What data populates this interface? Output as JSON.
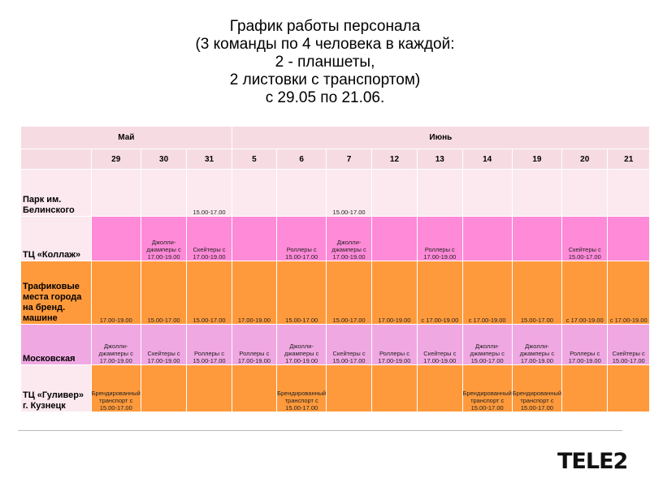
{
  "title_lines": [
    "График работы персонала",
    "(3 команды по 4 человека в каждой:",
    "2 - планшеты,",
    "2 листовки с транспортом)",
    "с 29.05 по 21.06."
  ],
  "months": {
    "may": "Май",
    "june": "Июнь"
  },
  "days": [
    "29",
    "30",
    "31",
    "5",
    "6",
    "7",
    "12",
    "13",
    "14",
    "19",
    "20",
    "21"
  ],
  "rows": [
    {
      "label": "Парк им. Белинского",
      "cells": [
        "",
        "",
        "15.00-17.00",
        "",
        "",
        "15.00-17.00",
        "",
        "",
        "",
        "",
        "",
        ""
      ]
    },
    {
      "label": "ТЦ «Коллаж»",
      "cells": [
        "",
        "Джолли-джамперы с 17.00-19.00",
        "Скейтеры с 17.00-19.00",
        "",
        "Роллеры с 15.00-17.00",
        "Джолли-джамперы с 17.00-19.00",
        "",
        "Роллеры с 17.00-19.00",
        "",
        "",
        "Скейтеры с 15.00-17.00",
        ""
      ]
    },
    {
      "label": "Трафиковые места города на бренд. машине",
      "cells": [
        "17.00-19.00",
        "15.00-17.00",
        "15.00-17.00",
        "17.00-19.00",
        "15.00-17.00",
        "15.00-17.00",
        "17.00-19.00",
        "с 17.00-19.00",
        "с 17.00-19.00",
        "15.00-17.00",
        "с 17.00-19.00",
        "с 17.00-19.00"
      ]
    },
    {
      "label": "Московская",
      "cells": [
        "Джолли-джамперы с 17.00-19.00",
        "Скейтеры с 17.00-19.00",
        "Роллеры с 15.00-17.00",
        "Роллеры с 17.00-19.00",
        "Джолли-джамперы с 17.00-19.00",
        "Скейтеры с 15.00-17.00",
        "Роллеры с 17.00-19.00",
        "Скейтеры с 17.00-19.00",
        "Джолли-джамперы с 15.00-17.00",
        "Джолли-джамперы с 17.00-19.00",
        "Роллеры с 17.00-19.00",
        "Скейтеры с 15.00-17.00"
      ]
    },
    {
      "label": "ТЦ «Гуливер» г. Кузнецк",
      "cells": [
        "Брендированный транспорт с 15.00-17.00",
        "",
        "",
        "",
        "Брендированный транспорт с 15.00-17.00",
        "",
        "",
        "",
        "Брендированный транспорт с 15.00-17.00",
        "Брендированный транспорт с 15.00-17.00",
        "",
        ""
      ]
    }
  ],
  "logo": "TELE2",
  "colors": {
    "header": "#f7dbe3",
    "light_pink": "#fbe9ef",
    "magenta": "#ff8ad8",
    "orange": "#ff9a3c",
    "lavender": "#f0a8e2"
  }
}
